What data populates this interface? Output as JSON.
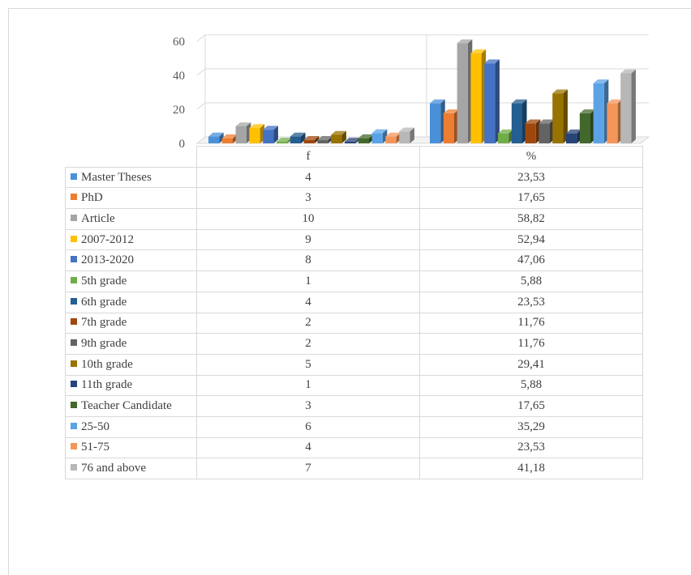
{
  "chart_data": {
    "type": "bar",
    "style": "3d-clustered-column-with-data-table",
    "categories": [
      "f",
      "%"
    ],
    "ylim": [
      0,
      60
    ],
    "yticks": [
      "0",
      "20",
      "40",
      "60"
    ],
    "grid": true,
    "legend": "data-table",
    "series": [
      {
        "name": "Master Theses",
        "color": "#4a90d9",
        "values": [
          4,
          23.53
        ],
        "labels": [
          "4",
          "23,53"
        ]
      },
      {
        "name": "PhD",
        "color": "#ed7d31",
        "values": [
          3,
          17.65
        ],
        "labels": [
          "3",
          "17,65"
        ]
      },
      {
        "name": "Article",
        "color": "#a5a5a5",
        "values": [
          10,
          58.82
        ],
        "labels": [
          "10",
          "58,82"
        ]
      },
      {
        "name": "2007-2012",
        "color": "#ffc000",
        "values": [
          9,
          52.94
        ],
        "labels": [
          "9",
          "52,94"
        ]
      },
      {
        "name": "2013-2020",
        "color": "#4472c4",
        "values": [
          8,
          47.06
        ],
        "labels": [
          "8",
          "47,06"
        ]
      },
      {
        "name": "5th grade",
        "color": "#70ad47",
        "values": [
          1,
          5.88
        ],
        "labels": [
          "1",
          "5,88"
        ]
      },
      {
        "name": "6th grade",
        "color": "#255e91",
        "values": [
          4,
          23.53
        ],
        "labels": [
          "4",
          "23,53"
        ]
      },
      {
        "name": "7th grade",
        "color": "#9e480e",
        "values": [
          2,
          11.76
        ],
        "labels": [
          "2",
          "11,76"
        ]
      },
      {
        "name": "9th grade",
        "color": "#636363",
        "values": [
          2,
          11.76
        ],
        "labels": [
          "2",
          "11,76"
        ]
      },
      {
        "name": "10th grade",
        "color": "#997300",
        "values": [
          5,
          29.41
        ],
        "labels": [
          "5",
          "29,41"
        ]
      },
      {
        "name": "11th grade",
        "color": "#264478",
        "values": [
          1,
          5.88
        ],
        "labels": [
          "1",
          "5,88"
        ]
      },
      {
        "name": "Teacher Candidate",
        "color": "#43682b",
        "values": [
          3,
          17.65
        ],
        "labels": [
          "3",
          "17,65"
        ]
      },
      {
        "name": "25-50",
        "color": "#5ba3e6",
        "values": [
          6,
          35.29
        ],
        "labels": [
          "6",
          "35,29"
        ]
      },
      {
        "name": "51-75",
        "color": "#f4965a",
        "values": [
          4,
          23.53
        ],
        "labels": [
          "4",
          "23,53"
        ]
      },
      {
        "name": "76 and above",
        "color": "#b7b7b7",
        "values": [
          7,
          41.18
        ],
        "labels": [
          "7",
          "41,18"
        ]
      }
    ]
  }
}
